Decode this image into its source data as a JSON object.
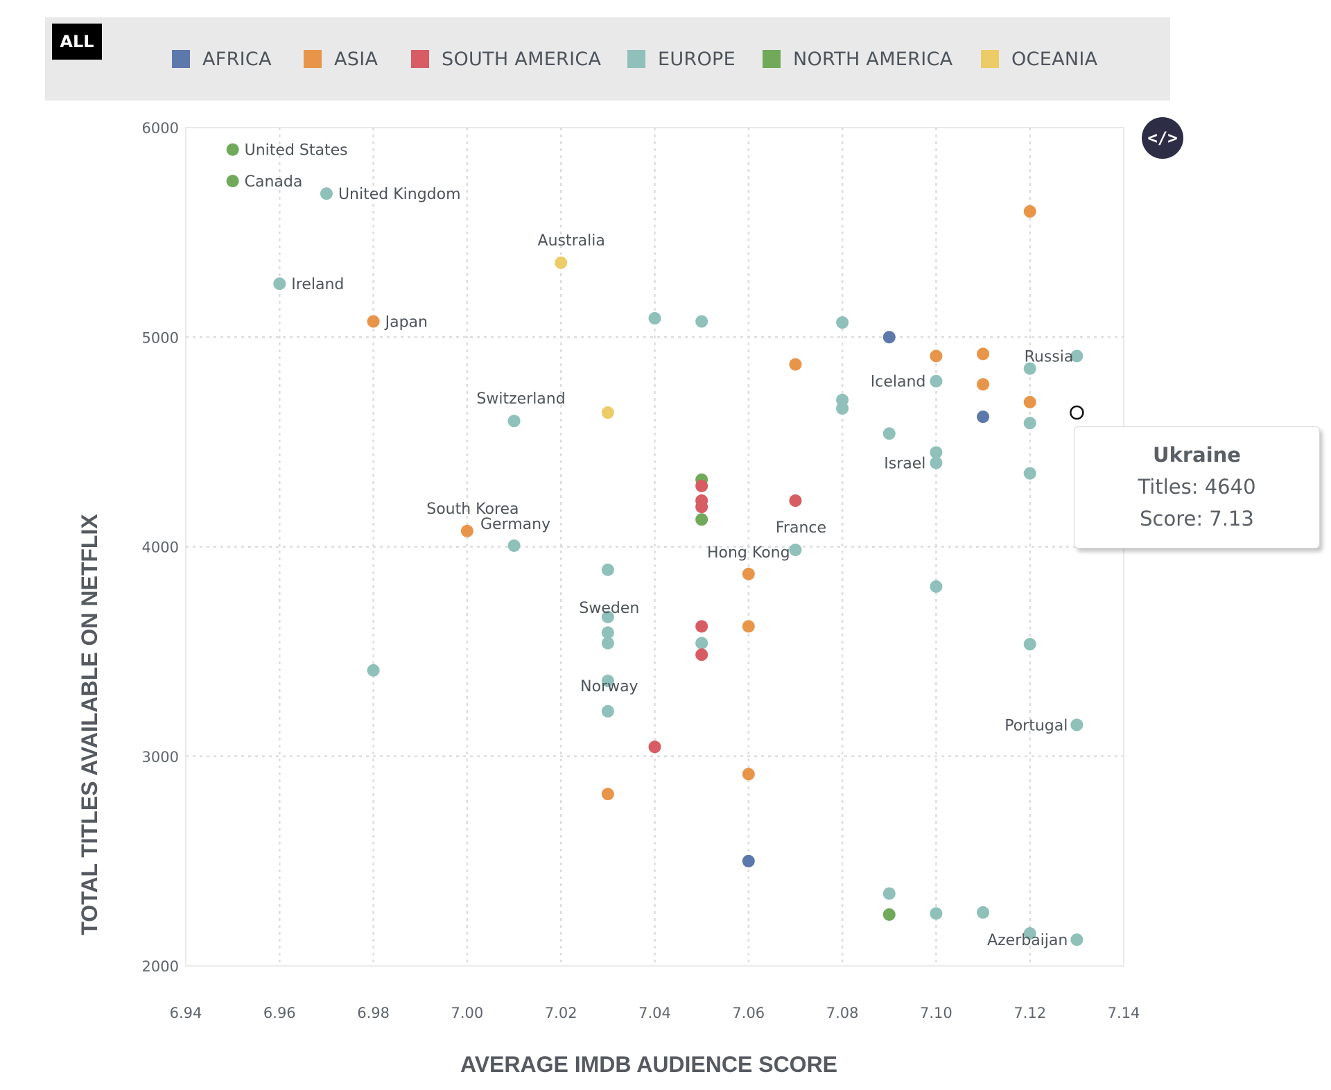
{
  "legend": {
    "all_label": "ALL",
    "items": [
      {
        "key": "africa",
        "label": "AFRICA",
        "color": "#5d78ab"
      },
      {
        "key": "asia",
        "label": "ASIA",
        "color": "#e99549"
      },
      {
        "key": "south_america",
        "label": "SOUTH AMERICA",
        "color": "#d85c64"
      },
      {
        "key": "europe",
        "label": "EUROPE",
        "color": "#8fc0ba"
      },
      {
        "key": "north_america",
        "label": "NORTH AMERICA",
        "color": "#70a95a"
      },
      {
        "key": "oceania",
        "label": "OCEANIA",
        "color": "#ebcc67"
      }
    ]
  },
  "embed_button": {
    "label": "</>"
  },
  "tooltip": {
    "title": "Ukraine",
    "titles_text": "Titles: 4640",
    "score_text": "Score: 7.13"
  },
  "chart_data": {
    "type": "scatter",
    "title": "",
    "xlabel": "AVERAGE IMDB AUDIENCE SCORE",
    "ylabel": "TOTAL TITLES AVAILABLE ON NETFLIX",
    "xlim": [
      6.94,
      7.14
    ],
    "ylim": [
      2000,
      6000
    ],
    "xticks": [
      "6.94",
      "6.96",
      "6.98",
      "7.00",
      "7.02",
      "7.04",
      "7.06",
      "7.08",
      "7.10",
      "7.12",
      "7.14"
    ],
    "yticks": [
      "2000",
      "3000",
      "4000",
      "5000",
      "6000"
    ],
    "grid": true,
    "highlighted": "Ukraine",
    "points": [
      {
        "label": "United States",
        "x": 6.95,
        "y": 5895,
        "group": "north_america"
      },
      {
        "label": "Canada",
        "x": 6.95,
        "y": 5745,
        "group": "north_america"
      },
      {
        "label": "United Kingdom",
        "x": 6.97,
        "y": 5685,
        "group": "europe"
      },
      {
        "label": "Australia",
        "x": 7.02,
        "y": 5355,
        "group": "oceania"
      },
      {
        "label": "Ireland",
        "x": 6.96,
        "y": 5255,
        "group": "europe"
      },
      {
        "label": "Japan",
        "x": 6.98,
        "y": 5075,
        "group": "asia"
      },
      {
        "label": "",
        "x": 7.04,
        "y": 5090,
        "group": "europe"
      },
      {
        "label": "",
        "x": 7.05,
        "y": 5075,
        "group": "europe"
      },
      {
        "label": "",
        "x": 7.08,
        "y": 5070,
        "group": "europe"
      },
      {
        "label": "",
        "x": 7.09,
        "y": 5000,
        "group": "africa"
      },
      {
        "label": "",
        "x": 7.12,
        "y": 5600,
        "group": "asia"
      },
      {
        "label": "",
        "x": 7.1,
        "y": 4910,
        "group": "asia"
      },
      {
        "label": "",
        "x": 7.11,
        "y": 4920,
        "group": "asia"
      },
      {
        "label": "Russia",
        "x": 7.13,
        "y": 4910,
        "group": "europe"
      },
      {
        "label": "",
        "x": 7.12,
        "y": 4850,
        "group": "europe"
      },
      {
        "label": "",
        "x": 7.07,
        "y": 4870,
        "group": "asia"
      },
      {
        "label": "Iceland",
        "x": 7.1,
        "y": 4790,
        "group": "europe"
      },
      {
        "label": "",
        "x": 7.11,
        "y": 4775,
        "group": "asia"
      },
      {
        "label": "",
        "x": 7.12,
        "y": 4690,
        "group": "asia"
      },
      {
        "label": "",
        "x": 7.08,
        "y": 4700,
        "group": "europe"
      },
      {
        "label": "",
        "x": 7.08,
        "y": 4660,
        "group": "europe"
      },
      {
        "label": "",
        "x": 7.03,
        "y": 4640,
        "group": "oceania"
      },
      {
        "label": "Ukraine",
        "x": 7.13,
        "y": 4640,
        "group": "europe"
      },
      {
        "label": "",
        "x": 7.11,
        "y": 4620,
        "group": "africa"
      },
      {
        "label": "Switzerland",
        "x": 7.01,
        "y": 4600,
        "group": "europe"
      },
      {
        "label": "",
        "x": 7.12,
        "y": 4590,
        "group": "europe"
      },
      {
        "label": "",
        "x": 7.09,
        "y": 4540,
        "group": "europe"
      },
      {
        "label": "",
        "x": 7.1,
        "y": 4450,
        "group": "europe"
      },
      {
        "label": "Israel",
        "x": 7.1,
        "y": 4400,
        "group": "europe"
      },
      {
        "label": "",
        "x": 7.12,
        "y": 4350,
        "group": "europe"
      },
      {
        "label": "",
        "x": 7.05,
        "y": 4320,
        "group": "north_america"
      },
      {
        "label": "",
        "x": 7.05,
        "y": 4290,
        "group": "south_america"
      },
      {
        "label": "",
        "x": 7.05,
        "y": 4220,
        "group": "south_america"
      },
      {
        "label": "",
        "x": 7.07,
        "y": 4220,
        "group": "south_america"
      },
      {
        "label": "",
        "x": 7.05,
        "y": 4190,
        "group": "south_america"
      },
      {
        "label": "",
        "x": 7.05,
        "y": 4130,
        "group": "north_america"
      },
      {
        "label": "South Korea",
        "x": 7.0,
        "y": 4075,
        "group": "asia"
      },
      {
        "label": "Germany",
        "x": 7.01,
        "y": 4005,
        "group": "europe"
      },
      {
        "label": "France",
        "x": 7.07,
        "y": 3985,
        "group": "europe"
      },
      {
        "label": "",
        "x": 7.03,
        "y": 3890,
        "group": "europe"
      },
      {
        "label": "Hong Kong",
        "x": 7.06,
        "y": 3870,
        "group": "asia"
      },
      {
        "label": "",
        "x": 7.1,
        "y": 3810,
        "group": "europe"
      },
      {
        "label": "Sweden",
        "x": 7.03,
        "y": 3665,
        "group": "europe"
      },
      {
        "label": "",
        "x": 7.05,
        "y": 3620,
        "group": "south_america"
      },
      {
        "label": "",
        "x": 7.06,
        "y": 3620,
        "group": "asia"
      },
      {
        "label": "",
        "x": 7.03,
        "y": 3590,
        "group": "europe"
      },
      {
        "label": "",
        "x": 7.03,
        "y": 3540,
        "group": "europe"
      },
      {
        "label": "",
        "x": 7.05,
        "y": 3540,
        "group": "europe"
      },
      {
        "label": "",
        "x": 7.12,
        "y": 3535,
        "group": "europe"
      },
      {
        "label": "",
        "x": 7.05,
        "y": 3485,
        "group": "south_america"
      },
      {
        "label": "",
        "x": 6.98,
        "y": 3410,
        "group": "europe"
      },
      {
        "label": "Norway",
        "x": 7.03,
        "y": 3360,
        "group": "europe"
      },
      {
        "label": "",
        "x": 7.03,
        "y": 3215,
        "group": "europe"
      },
      {
        "label": "Portugal",
        "x": 7.13,
        "y": 3150,
        "group": "europe"
      },
      {
        "label": "",
        "x": 7.04,
        "y": 3045,
        "group": "south_america"
      },
      {
        "label": "",
        "x": 7.06,
        "y": 2915,
        "group": "asia"
      },
      {
        "label": "",
        "x": 7.03,
        "y": 2820,
        "group": "asia"
      },
      {
        "label": "",
        "x": 7.06,
        "y": 2500,
        "group": "africa"
      },
      {
        "label": "",
        "x": 7.09,
        "y": 2345,
        "group": "europe"
      },
      {
        "label": "",
        "x": 7.09,
        "y": 2245,
        "group": "north_america"
      },
      {
        "label": "",
        "x": 7.1,
        "y": 2250,
        "group": "europe"
      },
      {
        "label": "",
        "x": 7.11,
        "y": 2255,
        "group": "europe"
      },
      {
        "label": "",
        "x": 7.12,
        "y": 2155,
        "group": "europe"
      },
      {
        "label": "Azerbaijan",
        "x": 7.13,
        "y": 2125,
        "group": "europe"
      }
    ]
  }
}
